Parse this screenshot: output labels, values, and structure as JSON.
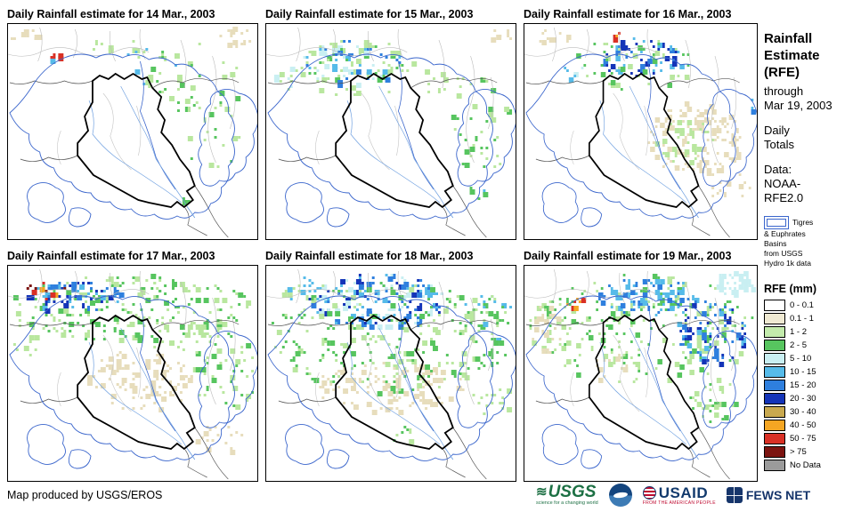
{
  "panels": [
    {
      "title": "Daily Rainfall estimate for 14 Mar., 2003",
      "seed": 101,
      "clusters": [
        [
          18,
          10,
          20,
          8,
          12,
          [
            "#E7DDBC"
          ]
        ],
        [
          262,
          14,
          22,
          12,
          14,
          [
            "#E7DDBC"
          ]
        ],
        [
          120,
          22,
          30,
          10,
          8,
          [
            "#B9E79F"
          ]
        ],
        [
          160,
          44,
          28,
          22,
          14,
          [
            "#B9E79F",
            "#56BBE9"
          ]
        ],
        [
          212,
          62,
          55,
          45,
          40,
          [
            "#B9E79F",
            "#57C55F"
          ]
        ],
        [
          232,
          122,
          38,
          38,
          20,
          [
            "#B9E79F",
            "#57C55F"
          ]
        ],
        [
          55,
          37,
          7,
          6,
          6,
          [
            "#D93025",
            "#56BBE9",
            "#F5A623"
          ]
        ],
        [
          200,
          196,
          7,
          6,
          4,
          [
            "#57C55F"
          ]
        ]
      ]
    },
    {
      "title": "Daily Rainfall estimate for 15 Mar., 2003",
      "seed": 202,
      "clusters": [
        [
          95,
          42,
          58,
          24,
          90,
          [
            "#56BBE9",
            "#2E7FDE",
            "#C9EFF2",
            "#57C55F"
          ]
        ],
        [
          100,
          48,
          75,
          32,
          55,
          [
            "#B9E79F"
          ]
        ],
        [
          28,
          60,
          22,
          14,
          14,
          [
            "#B9E79F",
            "#C9EFF2"
          ]
        ],
        [
          240,
          112,
          42,
          55,
          40,
          [
            "#B9E79F",
            "#57C55F"
          ]
        ],
        [
          198,
          60,
          25,
          18,
          12,
          [
            "#B9E79F"
          ]
        ],
        [
          236,
          190,
          12,
          9,
          7,
          [
            "#57C55F",
            "#56BBE9"
          ]
        ],
        [
          265,
          12,
          16,
          8,
          8,
          [
            "#E7DDBC"
          ]
        ]
      ]
    },
    {
      "title": "Daily Rainfall estimate for 16 Mar., 2003",
      "seed": 303,
      "clusters": [
        [
          140,
          38,
          55,
          22,
          70,
          [
            "#2E7FDE",
            "#56BBE9",
            "#1434B8"
          ]
        ],
        [
          130,
          45,
          75,
          30,
          50,
          [
            "#B9E79F",
            "#57C55F"
          ]
        ],
        [
          205,
          128,
          58,
          42,
          150,
          [
            "#E7DDBC"
          ]
        ],
        [
          195,
          130,
          35,
          28,
          35,
          [
            "#B9E79F"
          ]
        ],
        [
          30,
          15,
          25,
          10,
          12,
          [
            "#E7DDBC"
          ]
        ],
        [
          112,
          14,
          8,
          5,
          4,
          [
            "#F5A623",
            "#D93025"
          ]
        ],
        [
          272,
          88,
          10,
          8,
          5,
          [
            "#56BBE9",
            "#2E7FDE"
          ]
        ],
        [
          250,
          185,
          25,
          18,
          15,
          [
            "#E7DDBC"
          ]
        ],
        [
          60,
          52,
          12,
          8,
          6,
          [
            "#C9EFF2",
            "#56BBE9"
          ]
        ]
      ]
    },
    {
      "title": "Daily Rainfall estimate for 17 Mar., 2003",
      "seed": 404,
      "clusters": [
        [
          140,
          45,
          140,
          38,
          230,
          [
            "#B9E79F",
            "#57C55F"
          ]
        ],
        [
          70,
          33,
          58,
          18,
          70,
          [
            "#56BBE9",
            "#2E7FDE",
            "#1434B8"
          ]
        ],
        [
          42,
          26,
          32,
          9,
          14,
          [
            "#D93025",
            "#F5A623",
            "#7C1410",
            "#1434B8"
          ]
        ],
        [
          150,
          128,
          62,
          34,
          110,
          [
            "#E7DDBC"
          ]
        ],
        [
          246,
          118,
          38,
          45,
          50,
          [
            "#B9E79F",
            "#57C55F"
          ]
        ],
        [
          240,
          195,
          28,
          18,
          18,
          [
            "#E7DDBC"
          ]
        ],
        [
          20,
          80,
          16,
          20,
          12,
          [
            "#B9E79F"
          ]
        ],
        [
          190,
          80,
          40,
          20,
          25,
          [
            "#B9E79F"
          ]
        ]
      ]
    },
    {
      "title": "Daily Rainfall estimate for 18 Mar., 2003",
      "seed": 505,
      "clusters": [
        [
          125,
          38,
          78,
          30,
          180,
          [
            "#2E7FDE",
            "#56BBE9",
            "#1434B8",
            "#C9EFF2"
          ]
        ],
        [
          140,
          80,
          140,
          62,
          260,
          [
            "#B9E79F",
            "#57C55F"
          ]
        ],
        [
          140,
          135,
          85,
          28,
          110,
          [
            "#E7DDBC"
          ]
        ],
        [
          40,
          25,
          30,
          14,
          25,
          [
            "#B9E79F",
            "#56BBE9"
          ]
        ],
        [
          250,
          60,
          30,
          30,
          40,
          [
            "#B9E79F",
            "#57C55F",
            "#56BBE9"
          ]
        ],
        [
          155,
          190,
          14,
          10,
          8,
          [
            "#57C55F",
            "#B9E79F"
          ]
        ],
        [
          255,
          150,
          22,
          20,
          18,
          [
            "#B9E79F"
          ]
        ]
      ]
    },
    {
      "title": "Daily Rainfall estimate for 19 Mar., 2003",
      "seed": 606,
      "clusters": [
        [
          140,
          70,
          140,
          62,
          250,
          [
            "#B9E79F",
            "#57C55F"
          ]
        ],
        [
          150,
          33,
          62,
          22,
          90,
          [
            "#2E7FDE",
            "#56BBE9"
          ]
        ],
        [
          228,
          72,
          45,
          38,
          90,
          [
            "#2E7FDE",
            "#1434B8",
            "#56BBE9"
          ]
        ],
        [
          258,
          18,
          26,
          14,
          50,
          [
            "#C9EFF2"
          ]
        ],
        [
          60,
          40,
          14,
          8,
          8,
          [
            "#D93025",
            "#F5A623"
          ]
        ],
        [
          24,
          72,
          18,
          28,
          25,
          [
            "#E7DDBC"
          ]
        ],
        [
          230,
          150,
          30,
          25,
          30,
          [
            "#B9E79F",
            "#57C55F"
          ]
        ],
        [
          110,
          110,
          30,
          20,
          20,
          [
            "#E7DDBC",
            "#B9E79F"
          ]
        ]
      ]
    }
  ],
  "sidebar": {
    "title_lines": [
      "Rainfall",
      "Estimate",
      "(RFE)"
    ],
    "through": "through",
    "date": "Mar 19, 2003",
    "period_lines": [
      "Daily",
      "Totals"
    ],
    "data_lines": [
      "Data:",
      "NOAA-",
      "RFE2.0"
    ],
    "basin_note_lines": [
      "Tigres",
      "& Euphrates",
      "Basins",
      "from USGS",
      "Hydro 1k data"
    ],
    "legend_title": "RFE (mm)",
    "legend": [
      {
        "label": "0 - 0.1",
        "color": "#FFFFFF"
      },
      {
        "label": "0.1 - 1",
        "color": "#EFE9D2"
      },
      {
        "label": "1 - 2",
        "color": "#C3EBAC"
      },
      {
        "label": "2 - 5",
        "color": "#57C55F"
      },
      {
        "label": "5 - 10",
        "color": "#C9EFF2"
      },
      {
        "label": "10 - 15",
        "color": "#56BBE9"
      },
      {
        "label": "15 - 20",
        "color": "#2E7FDE"
      },
      {
        "label": "20 - 30",
        "color": "#1434B8"
      },
      {
        "label": "30 - 40",
        "color": "#C9A94F"
      },
      {
        "label": "40 - 50",
        "color": "#F5A623"
      },
      {
        "label": "50 - 75",
        "color": "#D93025"
      },
      {
        "label": "> 75",
        "color": "#7C1410"
      },
      {
        "label": "No Data",
        "color": "#9B9B9B"
      }
    ],
    "basin_outline_color": "#3B66CC"
  },
  "footer": {
    "credit": "Map produced by USGS/EROS"
  },
  "logos": {
    "usgs": {
      "text": "USGS",
      "tagline": "science for a changing world",
      "color": "#1D7044"
    },
    "noaa": {
      "name": "NOAA emblem"
    },
    "usaid": {
      "text": "USAID",
      "tagline": "FROM THE AMERICAN PEOPLE",
      "color": "#123A6D"
    },
    "fews": {
      "text": "FEWS NET",
      "color": "#16356B"
    }
  }
}
